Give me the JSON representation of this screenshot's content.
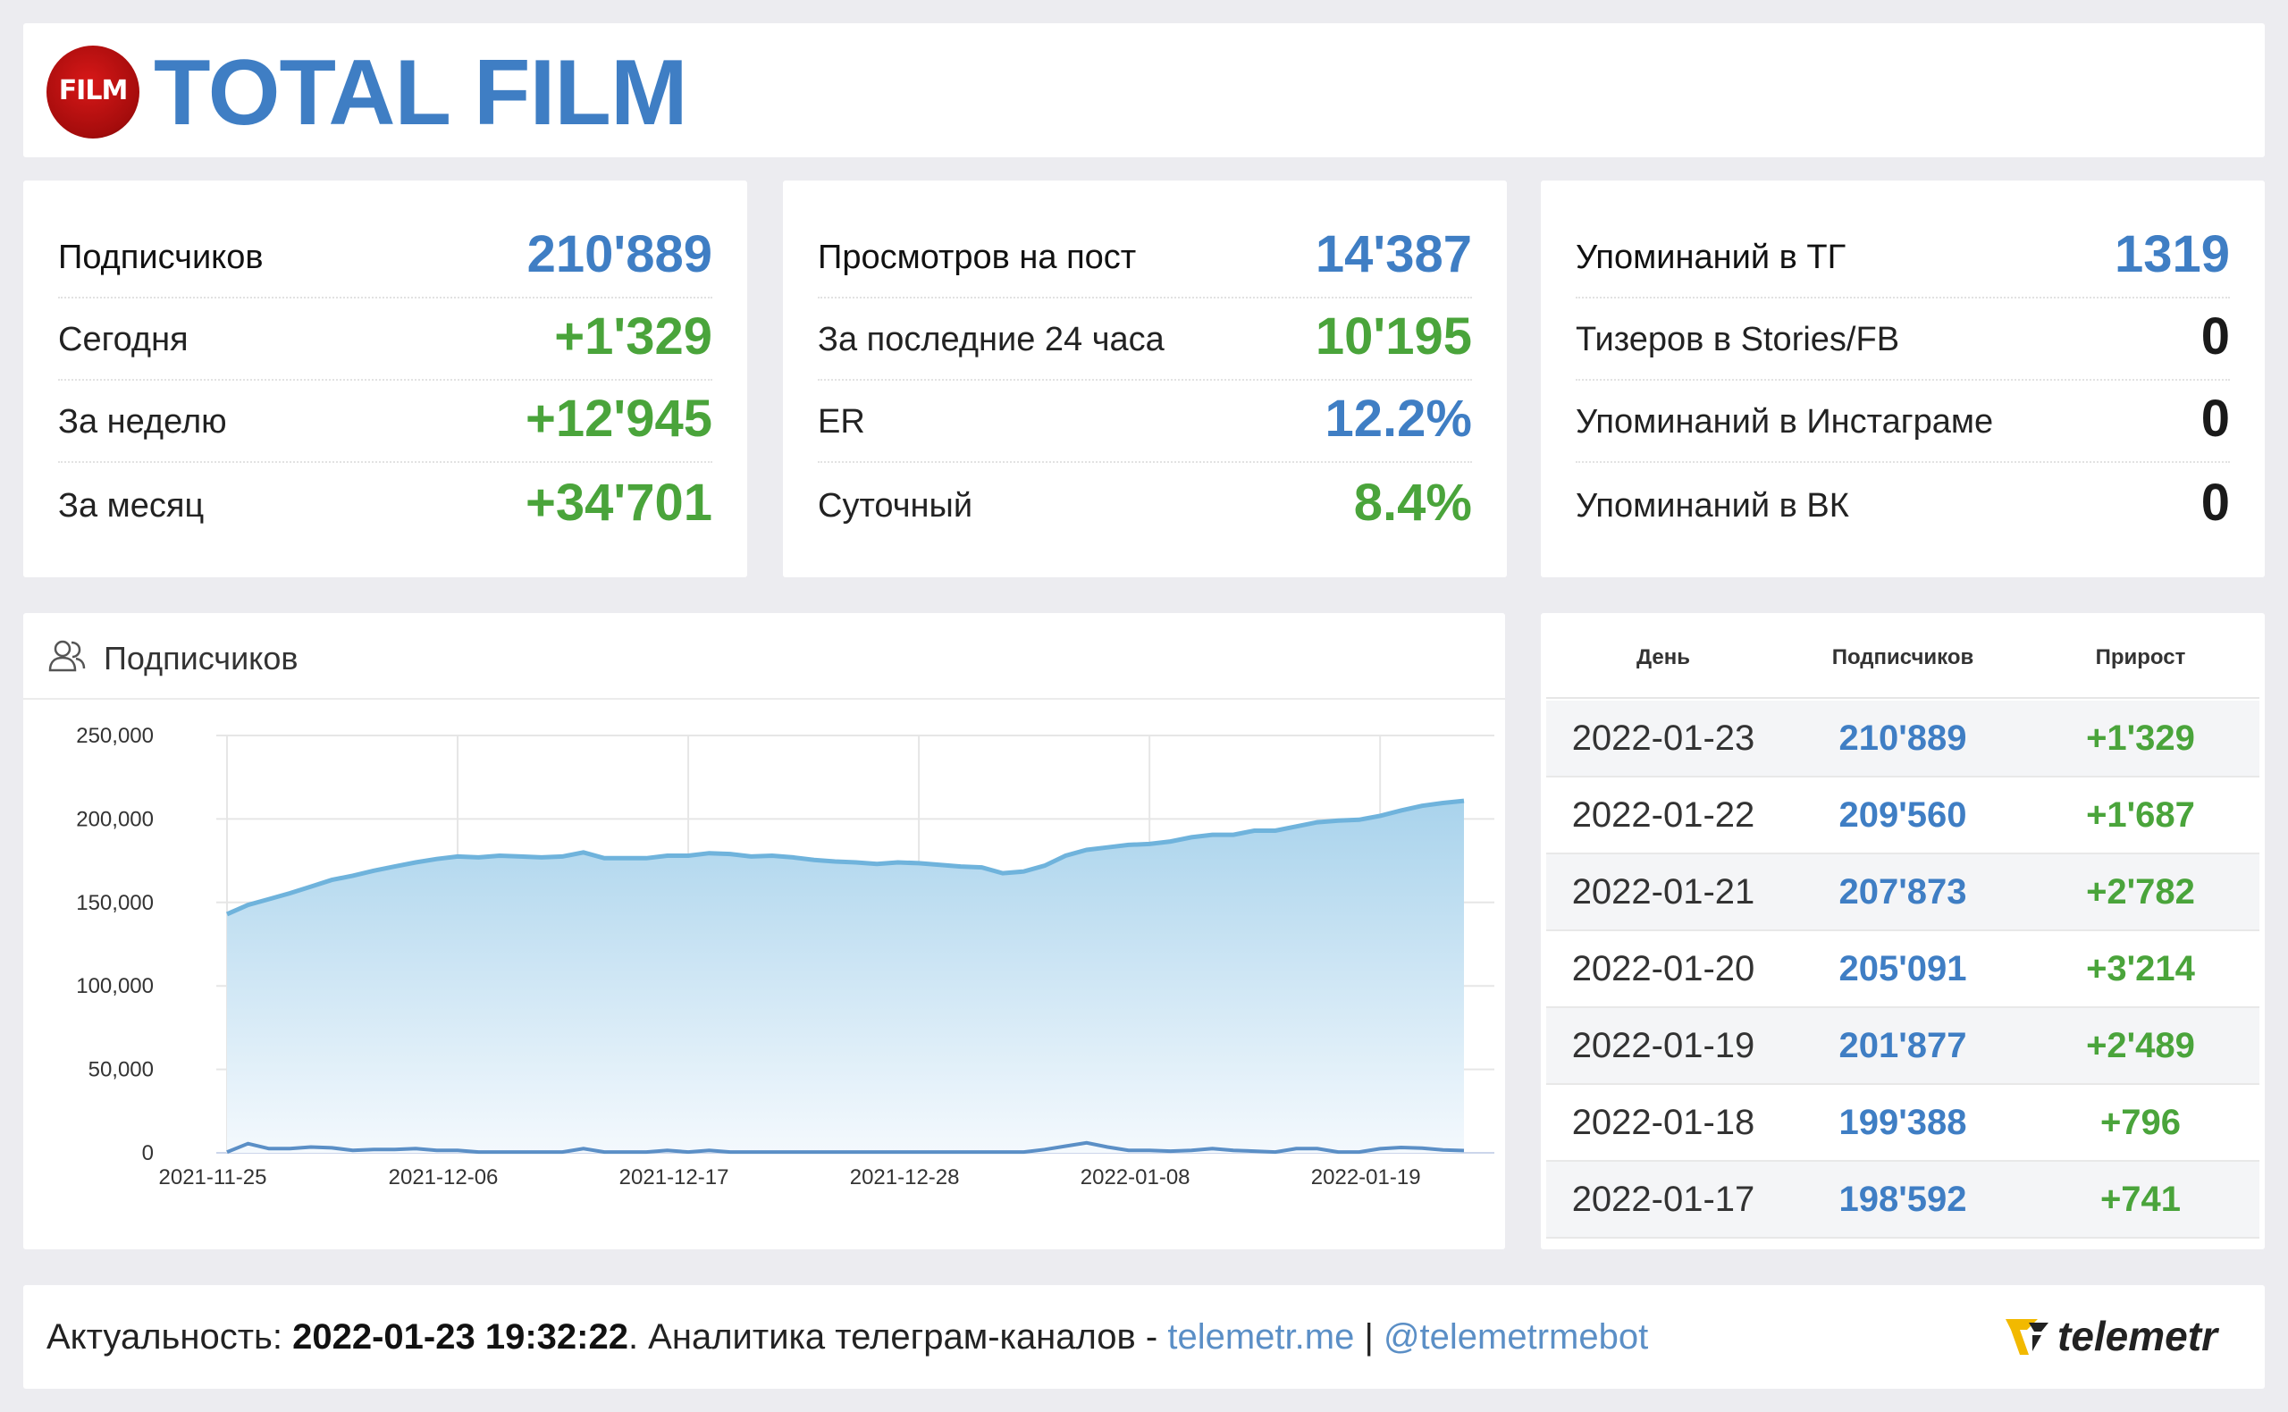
{
  "header": {
    "logo_text": "FILM",
    "title": "TOTAL FILM"
  },
  "stats": [
    {
      "rows": [
        {
          "label": "Подписчиков",
          "value": "210'889",
          "color": "blue"
        },
        {
          "label": "Сегодня",
          "value": "+1'329",
          "color": "green"
        },
        {
          "label": "За неделю",
          "value": "+12'945",
          "color": "green"
        },
        {
          "label": "За месяц",
          "value": "+34'701",
          "color": "green"
        }
      ]
    },
    {
      "rows": [
        {
          "label": "Просмотров на пост",
          "value": "14'387",
          "color": "blue"
        },
        {
          "label": "За последние 24 часа",
          "value": "10'195",
          "color": "green"
        },
        {
          "label": "ER",
          "value": "12.2%",
          "color": "blue"
        },
        {
          "label": "Суточный",
          "value": "8.4%",
          "color": "green"
        }
      ]
    },
    {
      "rows": [
        {
          "label": "Упоминаний в ТГ",
          "value": "1319",
          "color": "blue"
        },
        {
          "label": "Тизеров в Stories/FB",
          "value": "0",
          "color": "dark"
        },
        {
          "label": "Упоминаний в Инстаграме",
          "value": "0",
          "color": "dark"
        },
        {
          "label": "Упоминаний в ВК",
          "value": "0",
          "color": "dark"
        }
      ]
    }
  ],
  "chart_header": {
    "title": "Подписчиков",
    "icon": "users-icon"
  },
  "chart_data": {
    "type": "area",
    "x_ticks": [
      "2021-11-25",
      "2021-12-06",
      "2021-12-17",
      "2021-12-28",
      "2022-01-08",
      "2022-01-19"
    ],
    "y_ticks": [
      "250,000",
      "200,000",
      "150,000",
      "100,000",
      "50,000",
      "0"
    ],
    "ylim": [
      0,
      250000
    ],
    "x_start": "2021-11-25",
    "x_end": "2022-01-23",
    "series": [
      {
        "values": [
          143000,
          148500,
          152000,
          155500,
          159500,
          163500,
          166000,
          169000,
          171500,
          174000,
          176000,
          177500,
          177000,
          178000,
          177500,
          177000,
          177500,
          180000,
          176500,
          176500,
          176500,
          178000,
          178000,
          179500,
          179000,
          177500,
          178000,
          177000,
          175500,
          174500,
          174000,
          173000,
          174000,
          173500,
          172500,
          171500,
          171000,
          167500,
          168500,
          172000,
          178000,
          181500,
          183000,
          184500,
          185000,
          186500,
          189000,
          190500,
          190500,
          193000,
          193000,
          195500,
          198000,
          199000,
          199500,
          201877,
          205091,
          207873,
          209560,
          210889
        ],
        "color": "#6fb3dc"
      },
      {
        "values": [
          500,
          5500,
          2500,
          2500,
          3500,
          3000,
          1500,
          2000,
          2000,
          2500,
          1500,
          1500,
          500,
          500,
          500,
          500,
          500,
          2500,
          500,
          500,
          500,
          1500,
          500,
          1500,
          500,
          500,
          500,
          500,
          500,
          500,
          500,
          500,
          500,
          500,
          500,
          500,
          500,
          500,
          500,
          2000,
          4000,
          6000,
          3500,
          1500,
          1500,
          1000,
          1500,
          2500,
          1500,
          1000,
          500,
          2500,
          2500,
          500,
          500,
          2489,
          3214,
          2782,
          1687,
          1329
        ],
        "color": "#5b8fc6"
      }
    ],
    "grid": true
  },
  "table": {
    "headers": [
      "День",
      "Подписчиков",
      "Прирост"
    ],
    "rows": [
      {
        "day": "2022-01-23",
        "subs": "210'889",
        "growth": "+1'329"
      },
      {
        "day": "2022-01-22",
        "subs": "209'560",
        "growth": "+1'687"
      },
      {
        "day": "2022-01-21",
        "subs": "207'873",
        "growth": "+2'782"
      },
      {
        "day": "2022-01-20",
        "subs": "205'091",
        "growth": "+3'214"
      },
      {
        "day": "2022-01-19",
        "subs": "201'877",
        "growth": "+2'489"
      },
      {
        "day": "2022-01-18",
        "subs": "199'388",
        "growth": "+796"
      },
      {
        "day": "2022-01-17",
        "subs": "198'592",
        "growth": "+741"
      }
    ]
  },
  "footer": {
    "prefix": "Актуальность: ",
    "timestamp": "2022-01-23 19:32:22",
    "middle": ". Аналитика телеграм-каналов - ",
    "site_link": "telemetr.me",
    "separator": " | ",
    "bot_link": "@telemetrmebot",
    "brand": "telemetr"
  },
  "colors": {
    "blue": "#3f7ec4",
    "green": "#4aa43b",
    "area": "#6fb3dc"
  }
}
